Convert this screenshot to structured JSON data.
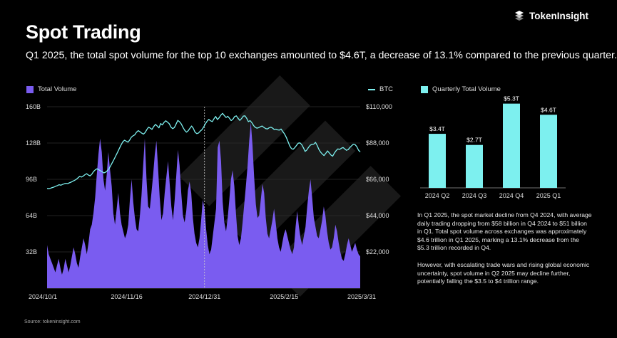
{
  "brand": {
    "name": "TokenInsight"
  },
  "title": "Spot Trading",
  "subtitle": "Q1 2025, the total spot volume for the top 10 exchanges amounted to $4.6T, a decrease of 13.1% compared to the previous quarter.",
  "source": "Source: tokeninsight.com",
  "colors": {
    "volume": "#7a5cf0",
    "btc": "#7df0ef",
    "bars": "#7df0ef",
    "background": "#000000"
  },
  "chart_data": [
    {
      "type": "area",
      "title": "",
      "legend": {
        "left": "Total Volume",
        "right": "BTC"
      },
      "x_ticks": [
        "2024/10/1",
        "2024/11/16",
        "2024/12/31",
        "2025/2/15",
        "2025/3/31"
      ],
      "y_left_ticks": [
        "32B",
        "64B",
        "96B",
        "128B",
        "160B"
      ],
      "y_left_lim": [
        0,
        160
      ],
      "y_right_ticks": [
        "$22,000",
        "$44,000",
        "$66,000",
        "$88,000",
        "$110,000"
      ],
      "y_right_lim": [
        0,
        110000
      ],
      "x_start": "2024/10/1",
      "x_end": "2025/3/31",
      "marker_date": "2024/12/31",
      "series": [
        {
          "name": "Total Volume",
          "axis": "left",
          "unit": "B",
          "values": [
            38,
            30,
            26,
            22,
            18,
            14,
            20,
            26,
            18,
            12,
            17,
            26,
            20,
            14,
            20,
            28,
            36,
            30,
            22,
            18,
            28,
            36,
            44,
            38,
            30,
            40,
            52,
            56,
            66,
            80,
            100,
            118,
            132,
            120,
            96,
            86,
            100,
            120,
            104,
            90,
            66,
            56,
            70,
            84,
            66,
            56,
            50,
            44,
            48,
            56,
            78,
            96,
            76,
            62,
            52,
            50,
            64,
            82,
            108,
            132,
            96,
            72,
            70,
            84,
            100,
            118,
            130,
            106,
            80,
            60,
            66,
            84,
            98,
            112,
            92,
            72,
            60,
            78,
            100,
            122,
            108,
            84,
            64,
            58,
            68,
            86,
            94,
            84,
            62,
            48,
            40,
            36,
            44,
            60,
            78,
            70,
            52,
            38,
            30,
            34,
            46,
            58,
            70,
            124,
            130,
            112,
            76,
            58,
            50,
            62,
            78,
            96,
            104,
            90,
            66,
            46,
            38,
            44,
            58,
            74,
            90,
            108,
            130,
            146,
            126,
            98,
            74,
            62,
            64,
            78,
            92,
            84,
            62,
            48,
            44,
            52,
            60,
            70,
            58,
            44,
            36,
            32,
            40,
            48,
            52,
            46,
            40,
            34,
            30,
            36,
            54,
            68,
            54,
            44,
            38,
            46,
            54,
            72,
            86,
            96,
            80,
            62,
            54,
            46,
            44,
            52,
            60,
            72,
            64,
            50,
            40,
            34,
            36,
            44,
            56,
            50,
            40,
            32,
            26,
            24,
            30,
            38,
            44,
            38,
            32,
            36,
            40,
            34,
            30,
            28
          ]
        },
        {
          "name": "BTC",
          "axis": "right",
          "unit": "USD",
          "values": [
            60500,
            60300,
            60600,
            61000,
            61300,
            61800,
            62200,
            62700,
            62400,
            62900,
            63300,
            63600,
            63400,
            63900,
            64300,
            64900,
            65400,
            66000,
            66900,
            67800,
            67400,
            68000,
            68800,
            69400,
            68600,
            68100,
            69100,
            70700,
            71700,
            72400,
            71800,
            71200,
            70600,
            69900,
            70300,
            71200,
            72400,
            74300,
            76300,
            78300,
            80400,
            82500,
            84700,
            86800,
            88700,
            89700,
            89100,
            88500,
            89800,
            91600,
            92400,
            93000,
            94600,
            95500,
            94800,
            94000,
            93400,
            94400,
            96200,
            97600,
            97000,
            96300,
            98000,
            99300,
            98300,
            97200,
            99800,
            99000,
            100500,
            101500,
            100700,
            99700,
            97600,
            96700,
            97400,
            99500,
            101700,
            100900,
            99600,
            97400,
            95700,
            94600,
            95400,
            96900,
            98300,
            96900,
            94600,
            93700,
            94100,
            95200,
            96100,
            97700,
            99600,
            101200,
            102300,
            101500,
            101000,
            102700,
            104100,
            102200,
            103300,
            104900,
            106000,
            104700,
            103500,
            104200,
            103000,
            101600,
            102400,
            104000,
            104500,
            103000,
            101700,
            102800,
            104300,
            104500,
            103000,
            101000,
            101600,
            100400,
            98600,
            97500,
            97000,
            97300,
            97900,
            98300,
            97500,
            96800,
            96500,
            97200,
            97600,
            97100,
            96200,
            96400,
            96000,
            95800,
            96500,
            94900,
            93500,
            91500,
            89000,
            86300,
            84700,
            84200,
            85200,
            86600,
            87900,
            88100,
            87000,
            85100,
            82900,
            83800,
            85400,
            86700,
            87200,
            87300,
            88400,
            86500,
            84100,
            82500,
            81300,
            80400,
            81800,
            83200,
            82000,
            80700,
            80000,
            81900,
            83400,
            84400,
            84100,
            84800,
            85300,
            84400,
            83600,
            84000,
            85300,
            86300,
            87300,
            87000,
            85800,
            83700,
            82600
          ]
        }
      ]
    },
    {
      "type": "bar",
      "title": "",
      "legend": "Quarterly Total Volume",
      "categories": [
        "2024 Q2",
        "2024 Q3",
        "2024 Q4",
        "2025 Q1"
      ],
      "values": [
        3.4,
        2.7,
        5.3,
        4.6
      ],
      "labels": [
        "$3.4T",
        "$2.7T",
        "$5.3T",
        "$4.6T"
      ],
      "unit": "T USD",
      "ylim": [
        0,
        6
      ]
    }
  ],
  "description": [
    "In Q1 2025, the spot market decline from Q4 2024, with average daily trading dropping from $58 billion in Q4 2024 to $51 billion in Q1. Total spot volume across exchanges was approximately $4.6 trillion in Q1 2025, marking a 13.1% decrease from the $5.3 trillion recorded in Q4.",
    "However, with escalating trade wars and rising global economic uncertainty, spot volume in Q2 2025 may decline further, potentially falling the $3.5 to $4 trillion range."
  ]
}
